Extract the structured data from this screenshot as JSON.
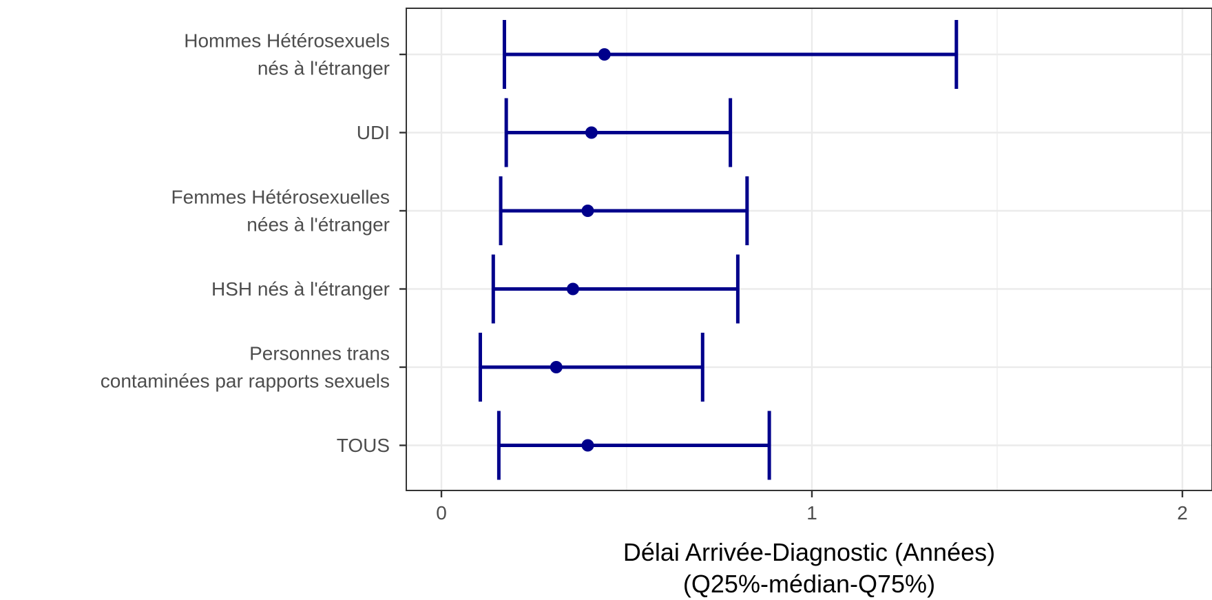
{
  "chart_data": {
    "type": "errorbar",
    "title": "",
    "xlabel_lines": [
      "Délai Arrivée-Diagnostic (Années)",
      "(Q25%-médian-Q75%)"
    ],
    "ylabel": "",
    "xlim": [
      -0.1,
      2.1
    ],
    "x_ticks": [
      0,
      1,
      2
    ],
    "x_tick_labels": [
      "0",
      "1",
      "2"
    ],
    "grid": true,
    "legend": "none",
    "color": "#00008B",
    "categories": [
      {
        "label_lines": [
          "Hommes Hétérosexuels",
          "nés à l'étranger"
        ],
        "q25": 0.17,
        "median": 0.44,
        "q75": 1.39
      },
      {
        "label_lines": [
          "UDI"
        ],
        "q25": 0.175,
        "median": 0.405,
        "q75": 0.78
      },
      {
        "label_lines": [
          "Femmes Hétérosexuelles",
          "nées à l'étranger"
        ],
        "q25": 0.16,
        "median": 0.395,
        "q75": 0.825
      },
      {
        "label_lines": [
          "HSH nés à l'étranger"
        ],
        "q25": 0.14,
        "median": 0.355,
        "q75": 0.8
      },
      {
        "label_lines": [
          "Personnes trans",
          "contaminées par rapports sexuels"
        ],
        "q25": 0.105,
        "median": 0.31,
        "q75": 0.705
      },
      {
        "label_lines": [
          "TOUS"
        ],
        "q25": 0.155,
        "median": 0.395,
        "q75": 0.885
      }
    ]
  }
}
